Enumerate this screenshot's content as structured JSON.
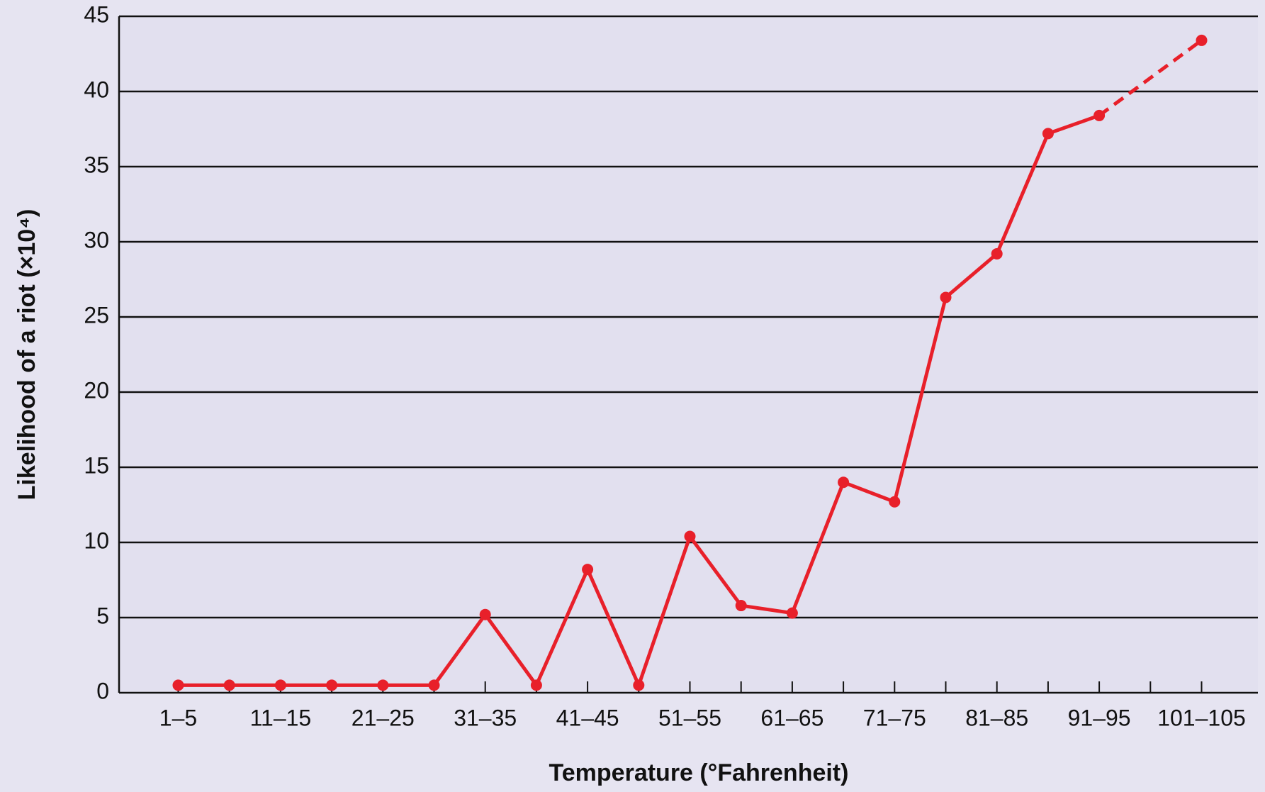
{
  "chart_data": {
    "type": "line",
    "x_label": "Temperature (°Fahrenheit)",
    "y_label": "Likelihood of a riot (×10⁴)",
    "categories": [
      "1–5",
      null,
      "11–15",
      null,
      "21–25",
      null,
      "31–35",
      null,
      "41–45",
      null,
      "51–55",
      null,
      "61–65",
      null,
      "71–75",
      null,
      "81–85",
      null,
      "91–95",
      null,
      "101–105"
    ],
    "series": [
      {
        "color": "#e8202a",
        "values": [
          0.5,
          0.5,
          0.5,
          0.5,
          0.5,
          0.5,
          5.2,
          0.5,
          8.2,
          0.5,
          10.4,
          5.8,
          5.3,
          14.0,
          12.7,
          26.3,
          29.2,
          37.2,
          38.4,
          null,
          43.4
        ]
      }
    ],
    "ylim": [
      0,
      45
    ],
    "yticks": [
      0,
      5,
      10,
      15,
      20,
      25,
      30,
      35,
      40,
      45
    ],
    "grid": true
  }
}
